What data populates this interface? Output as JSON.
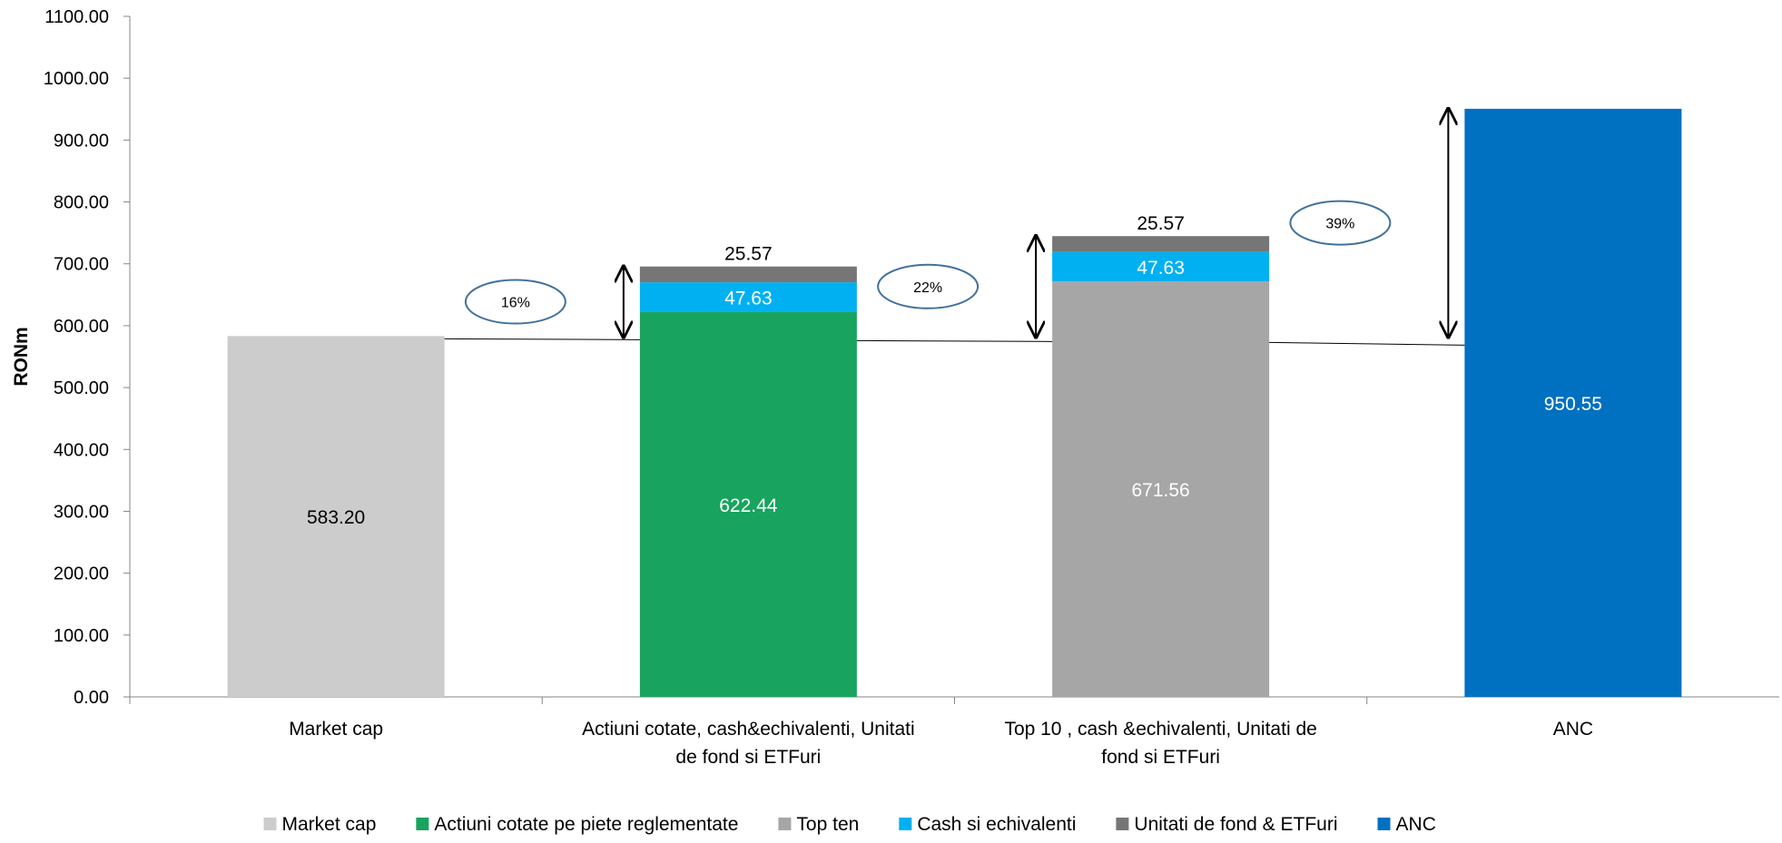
{
  "chart_data": {
    "type": "bar",
    "ylabel": "RONm",
    "xlabel": "",
    "ylim": [
      0,
      1100
    ],
    "ytick_step": 100,
    "yticks": [
      "0.00",
      "100.00",
      "200.00",
      "300.00",
      "400.00",
      "500.00",
      "600.00",
      "700.00",
      "800.00",
      "900.00",
      "1000.00",
      "1100.00"
    ],
    "categories": [
      {
        "lines": [
          "Market cap"
        ]
      },
      {
        "lines": [
          "Actiuni cotate, cash&echivalenti, Unitati",
          "de fond si ETFuri"
        ]
      },
      {
        "lines": [
          "Top 10 , cash &echivalenti, Unitati de",
          "fond si ETFuri"
        ]
      },
      {
        "lines": [
          "ANC"
        ]
      }
    ],
    "series": [
      {
        "name": "Market cap",
        "color": "#CCCCCC",
        "label_color": "#000000",
        "values": [
          583.2,
          null,
          null,
          null
        ],
        "labels": [
          "583.20",
          null,
          null,
          null
        ]
      },
      {
        "name": "Actiuni cotate  pe piete reglementate",
        "color": "#18A45E",
        "label_color": "#ffffff",
        "values": [
          null,
          622.44,
          null,
          null
        ],
        "labels": [
          null,
          "622.44",
          null,
          null
        ]
      },
      {
        "name": "Top ten",
        "color": "#A6A6A6",
        "label_color": "#ffffff",
        "values": [
          null,
          null,
          671.56,
          null
        ],
        "labels": [
          null,
          null,
          "671.56",
          null
        ]
      },
      {
        "name": "Cash si echivalenti",
        "color": "#00B0F0",
        "label_color": "#ffffff",
        "values": [
          null,
          47.63,
          47.63,
          null
        ],
        "labels": [
          null,
          "47.63",
          "47.63",
          null
        ]
      },
      {
        "name": "Unitati de fond  &  ETFuri",
        "color": "#767676",
        "label_color": "#000000",
        "values": [
          null,
          25.57,
          25.57,
          null
        ],
        "labels": [
          null,
          "25.57",
          "25.57",
          null
        ]
      },
      {
        "name": "ANC",
        "color": "#0070C0",
        "label_color": "#ffffff",
        "values": [
          null,
          null,
          null,
          950.55
        ],
        "labels": [
          null,
          null,
          null,
          "950.55"
        ]
      }
    ],
    "annotations": [
      {
        "text": "16%",
        "category": 1,
        "from": 583.2,
        "to": 695.64
      },
      {
        "text": "22%",
        "category": 2,
        "from": 583.2,
        "to": 744.76
      },
      {
        "text": "39%",
        "category": 3,
        "from": 583.2,
        "to": 950.55
      }
    ],
    "legend_position": "bottom",
    "grid": false
  }
}
